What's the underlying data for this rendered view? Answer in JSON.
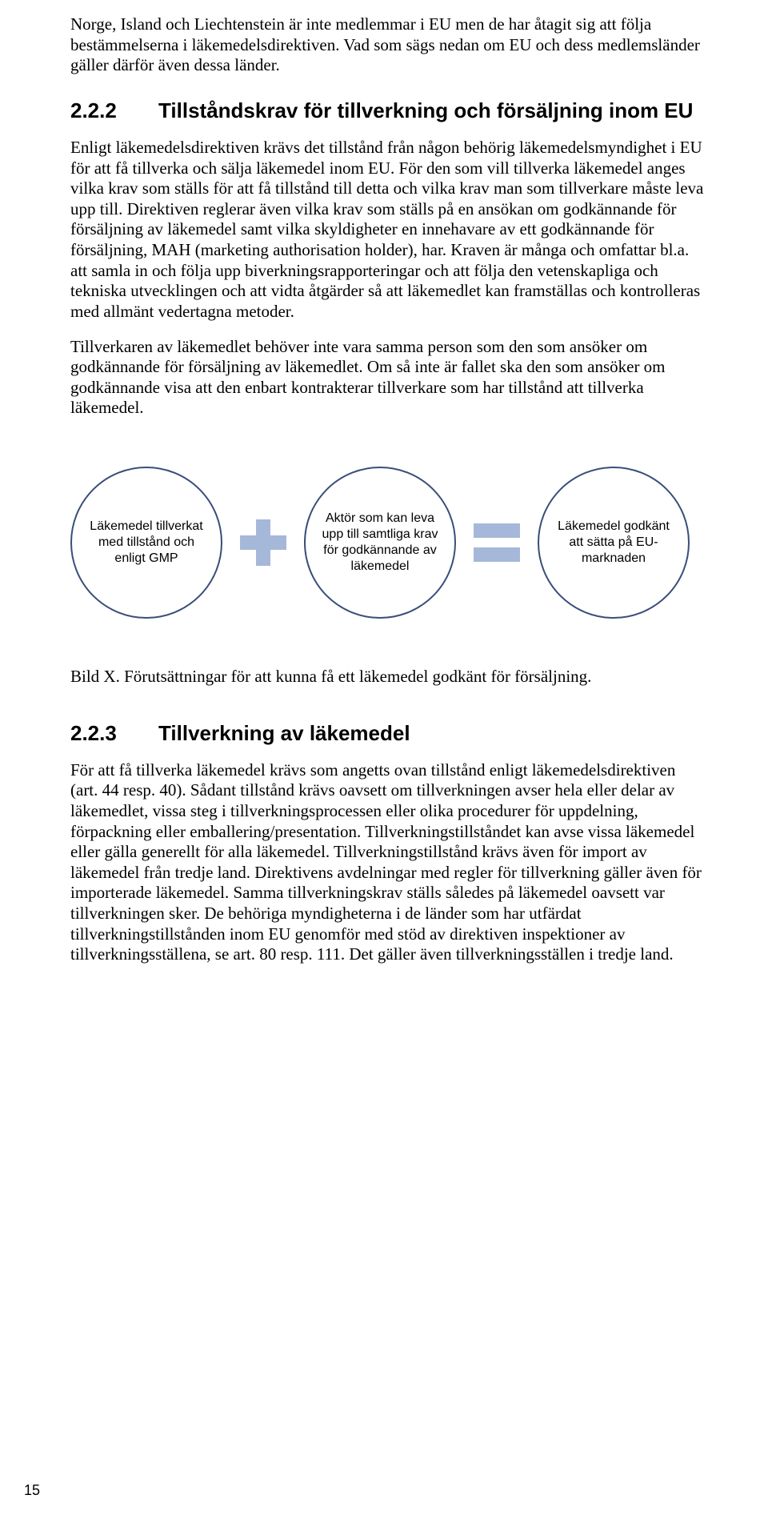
{
  "paragraphs": {
    "intro": "Norge, Island och Liechtenstein är inte medlemmar i EU men de har åtagit sig att följa bestämmelserna i läkemedelsdirektiven. Vad som sägs nedan om EU och dess medlemsländer gäller därför även dessa länder.",
    "p222a": "Enligt läkemedelsdirektiven krävs det tillstånd från någon behörig läkemedelsmyndighet i EU för att få tillverka och sälja läkemedel inom EU. För den som vill tillverka läkemedel anges vilka krav som ställs för att få tillstånd till detta och vilka krav man som tillverkare måste leva upp till. Direktiven reglerar även vilka krav som ställs på en ansökan om godkännande för försäljning av läkemedel samt vilka skyldigheter en innehavare av ett godkännande för försäljning, MAH (marketing authorisation holder), har. Kraven är många och omfattar bl.a. att samla in och följa upp biverkningsrapporteringar och att följa den vetenskapliga och tekniska utvecklingen och att vidta åtgärder så att läkemedlet kan framställas och kontrolleras med allmänt vedertagna metoder.",
    "p222b": "Tillverkaren av läkemedlet behöver inte vara samma person som den som ansöker om godkännande för försäljning av läkemedlet. Om så inte är fallet ska den som ansöker om godkännande visa att den enbart kontrakterar tillverkare som har tillstånd att tillverka läkemedel.",
    "p223": "För att få tillverka läkemedel krävs som angetts ovan tillstånd enligt läkemedelsdirektiven (art. 44 resp. 40). Sådant tillstånd krävs oavsett om tillverkningen avser hela eller delar av läkemedlet, vissa steg i tillverkningsprocessen eller olika procedurer för uppdelning, förpackning eller emballering/presentation. Tillverkningstillståndet kan avse vissa läkemedel eller gälla generellt för alla läkemedel. Tillverkningstillstånd krävs även för import av läkemedel från tredje land. Direktivens avdelningar med regler för tillverkning gäller även för importerade läkemedel. Samma tillverkningskrav ställs således på läkemedel oavsett var tillverkningen sker. De behöriga myndigheterna i de länder som har utfärdat tillverkningstillstånden inom EU genomför med stöd av direktiven inspektioner av tillverkningsställena, se art. 80 resp. 111. Det gäller även tillverkningsställen i tredje land."
  },
  "headings": {
    "h222": {
      "num": "2.2.2",
      "title": "Tillståndskrav för tillverkning och försäljning inom EU"
    },
    "h223": {
      "num": "2.2.3",
      "title": "Tillverkning av läkemedel"
    }
  },
  "diagram": {
    "type": "infographic",
    "circle_border_color": "#3a4e7a",
    "circle_border_width": 2.5,
    "circle_diameter": 190,
    "operator_color": "#a6b8d9",
    "font_family": "Arial",
    "font_size": 16,
    "nodes": {
      "c1": "Läkemedel tillverkat med tillstånd och enligt GMP",
      "c2": "Aktör som kan leva upp till samtliga krav för godkännande av läkemedel",
      "c3": "Läkemedel godkänt att sätta på EU-marknaden"
    },
    "operators": [
      "plus",
      "equals"
    ]
  },
  "caption": "Bild X. Förutsättningar för att kunna få ett läkemedel godkänt för försäljning.",
  "page_number": "15"
}
